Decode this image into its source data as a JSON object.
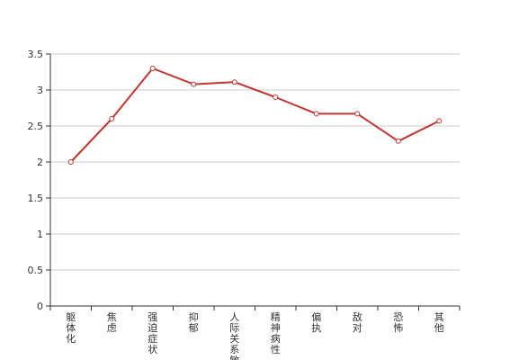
{
  "chart_data": {
    "type": "line",
    "title": "",
    "xlabel": "",
    "ylabel": "",
    "categories": [
      "躯体化",
      "焦虑",
      "强迫症状",
      "抑郁",
      "人际关系敏感",
      "精神病性",
      "偏执",
      "敌对",
      "恐怖",
      "其他"
    ],
    "series": [
      {
        "values": [
          2.0,
          2.6,
          3.3,
          3.08,
          3.11,
          2.9,
          2.67,
          2.67,
          2.29,
          2.57
        ]
      }
    ],
    "ylim": [
      0,
      3.5
    ],
    "yticks": [
      "0",
      "0.5",
      "1",
      "1.5",
      "2",
      "2.5",
      "3",
      "3.5"
    ],
    "grid": true,
    "legend": "none",
    "colors": {
      "line": "#c23531",
      "grid": "#cccccc",
      "axis": "#333333",
      "marker_fill": "#ffffff"
    }
  }
}
